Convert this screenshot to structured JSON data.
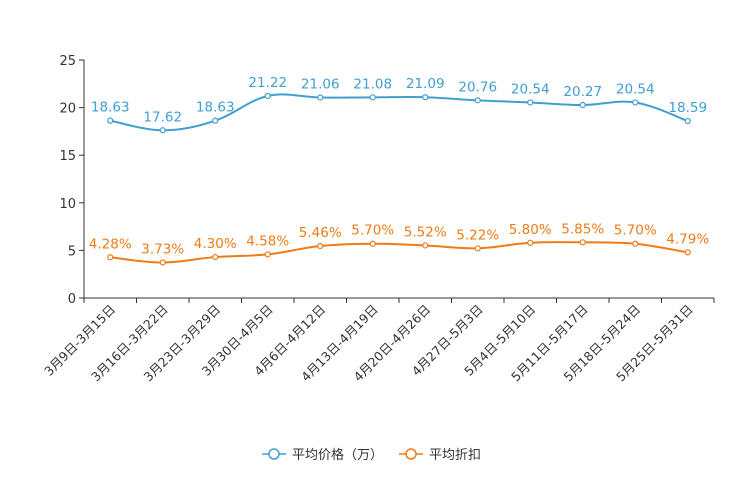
{
  "chart_data": {
    "type": "line",
    "title": "",
    "xlabel": "",
    "ylabel": "",
    "ylim": [
      0,
      25
    ],
    "yticks": [
      0,
      5,
      10,
      15,
      20,
      25
    ],
    "grid": false,
    "legend_position": "bottom-center",
    "categories": [
      "3月9日-3月15日",
      "3月16日-3月22日",
      "3月23日-3月29日",
      "3月30日-4月5日",
      "4月6日-4月12日",
      "4月13日-4月19日",
      "4月20日-4月26日",
      "4月27日-5月3日",
      "5月4日-5月10日",
      "5月11日-5月17日",
      "5月18日-5月24日",
      "5月25日-5月31日"
    ],
    "series": [
      {
        "name": "平均价格（万）",
        "color": "#3fa0cf",
        "values": [
          18.63,
          17.62,
          18.63,
          21.22,
          21.06,
          21.08,
          21.09,
          20.76,
          20.54,
          20.27,
          20.54,
          18.59
        ],
        "labels": [
          "18.63",
          "17.62",
          "18.63",
          "21.22",
          "21.06",
          "21.08",
          "21.09",
          "20.76",
          "20.54",
          "20.27",
          "20.54",
          "18.59"
        ]
      },
      {
        "name": "平均折扣",
        "color": "#f07b16",
        "values": [
          4.28,
          3.73,
          4.3,
          4.58,
          5.46,
          5.7,
          5.52,
          5.22,
          5.8,
          5.85,
          5.7,
          4.79
        ],
        "labels": [
          "4.28%",
          "3.73%",
          "4.30%",
          "4.58%",
          "5.46%",
          "5.70%",
          "5.52%",
          "5.22%",
          "5.80%",
          "5.85%",
          "5.70%",
          "4.79%"
        ]
      }
    ]
  }
}
